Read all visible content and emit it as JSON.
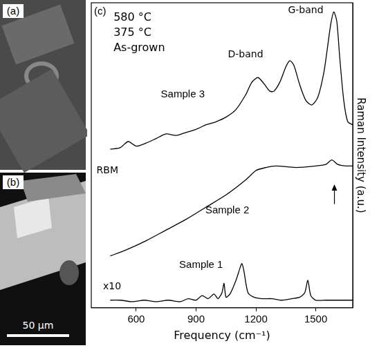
{
  "panels": [
    {
      "label": "(a)"
    },
    {
      "label": "(b)",
      "scale_bar": "50 μm"
    }
  ],
  "chart_data": {
    "type": "line",
    "panel_label": "(c)",
    "x_label": "Frequency (cm⁻¹)",
    "y_label": "Raman Intensity (a.u.)",
    "xlim": [
      375,
      1685
    ],
    "xticks": [
      600,
      900,
      1200,
      1500
    ],
    "ylim": [
      0,
      100
    ],
    "tick_labels": "x",
    "grid": false,
    "annotations": [
      "580 °C",
      "375 °C",
      "As-grown",
      "G-band",
      "D-band",
      "RBM",
      "x10"
    ],
    "series": [
      {
        "name": "Sample 3",
        "color": "#000000",
        "x": [
          470,
          520,
          560,
          600,
          650,
          700,
          750,
          800,
          850,
          900,
          950,
          1000,
          1050,
          1100,
          1150,
          1180,
          1210,
          1240,
          1270,
          1290,
          1320,
          1350,
          1370,
          1390,
          1420,
          1450,
          1480,
          1510,
          1540,
          1560,
          1575,
          1590,
          1605,
          1620,
          1640,
          1660,
          1685
        ],
        "values": [
          52,
          52.5,
          54.5,
          53,
          54,
          55.5,
          57,
          56.5,
          57.5,
          58.5,
          60,
          61,
          62.5,
          65,
          70,
          74,
          75.5,
          73.5,
          71,
          71,
          74,
          79,
          81,
          79.5,
          73,
          68,
          66.5,
          69,
          77,
          86,
          93,
          97,
          94,
          82,
          68,
          61,
          60
        ]
      },
      {
        "name": "Sample 2",
        "color": "#000000",
        "x": [
          470,
          550,
          650,
          750,
          850,
          950,
          1050,
          1150,
          1200,
          1250,
          1300,
          1400,
          1500,
          1550,
          1580,
          1610,
          1650,
          1685
        ],
        "values": [
          17,
          19,
          22,
          25.5,
          29,
          33,
          37,
          42,
          45,
          46,
          46.5,
          46,
          46.5,
          47,
          48.5,
          47,
          46.5,
          46.5
        ]
      },
      {
        "name": "Sample 1",
        "color": "#000000",
        "x": [
          470,
          520,
          580,
          640,
          700,
          760,
          820,
          860,
          900,
          930,
          960,
          990,
          1010,
          1030,
          1040,
          1050,
          1070,
          1100,
          1120,
          1130,
          1140,
          1160,
          1190,
          1230,
          1280,
          1330,
          1380,
          1420,
          1445,
          1460,
          1475,
          1500,
          1550,
          1600,
          1650,
          1685
        ],
        "values": [
          2.5,
          2.5,
          2,
          2.5,
          2,
          2.5,
          2,
          3,
          2.5,
          4,
          3,
          4.5,
          3,
          5,
          8,
          3.5,
          4.5,
          9,
          13,
          14.5,
          12,
          5,
          3.5,
          3,
          3,
          2.5,
          3,
          3.5,
          5,
          9,
          4,
          2.5,
          2.5,
          2.5,
          2.5,
          2.5
        ]
      }
    ]
  }
}
